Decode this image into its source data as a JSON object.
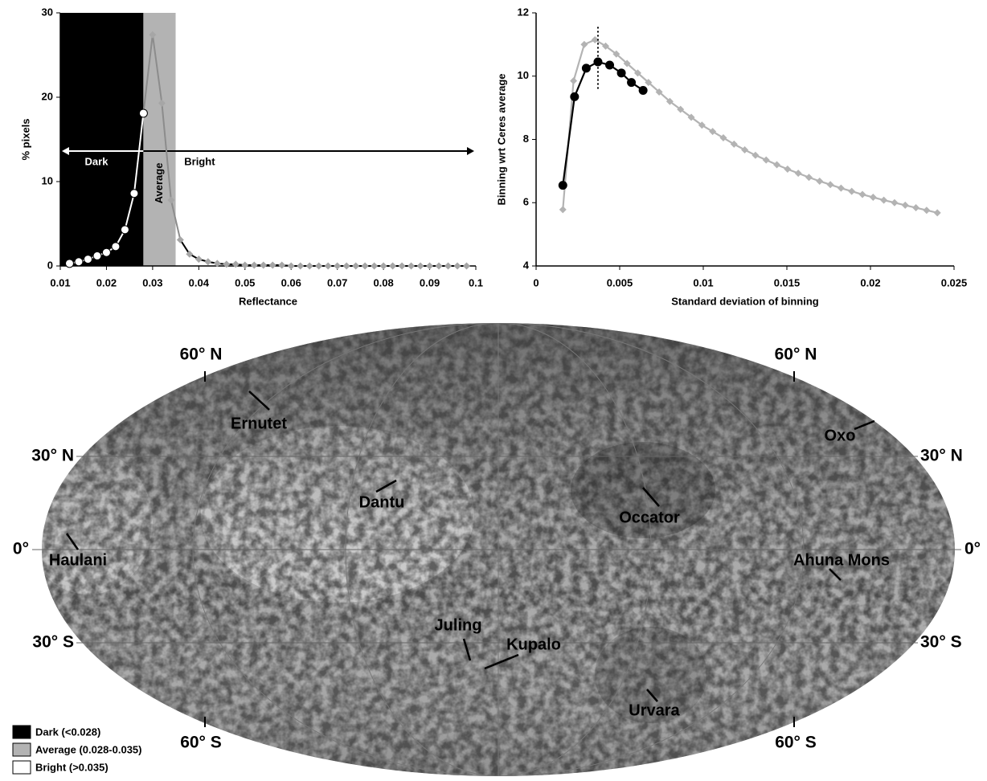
{
  "chart_data": [
    {
      "type": "line",
      "xlabel": "Reflectance",
      "ylabel": "% pixels",
      "xlim": [
        0.01,
        0.1
      ],
      "ylim": [
        0,
        30
      ],
      "xticks": [
        0.01,
        0.02,
        0.03,
        0.04,
        0.05,
        0.06,
        0.07,
        0.08,
        0.09,
        0.1
      ],
      "yticks": [
        0,
        10,
        20,
        30
      ],
      "regions": [
        {
          "name": "Dark (<0.028)",
          "color": "#000000",
          "range": [
            0.01,
            0.028
          ]
        },
        {
          "name": "Average (0.028-0.035)",
          "color": "#b3b3b3",
          "range": [
            0.028,
            0.035
          ]
        },
        {
          "name": "Bright (>0.035)",
          "color": "#ffffff",
          "range": [
            0.035,
            0.1
          ]
        }
      ],
      "annotations": [
        "Dark",
        "Average",
        "Bright"
      ],
      "x": [
        0.012,
        0.014,
        0.016,
        0.018,
        0.02,
        0.022,
        0.024,
        0.026,
        0.028,
        0.03,
        0.032,
        0.034,
        0.036,
        0.038,
        0.04,
        0.042,
        0.044,
        0.046,
        0.048,
        0.05,
        0.052,
        0.054,
        0.056,
        0.058,
        0.06,
        0.062,
        0.064,
        0.066,
        0.068,
        0.07,
        0.072,
        0.074,
        0.076,
        0.078,
        0.08,
        0.082,
        0.084,
        0.086,
        0.088,
        0.09,
        0.092,
        0.094,
        0.096,
        0.098
      ],
      "values": [
        0.3,
        0.5,
        0.8,
        1.2,
        1.6,
        2.3,
        4.3,
        8.6,
        18.1,
        27.4,
        19.3,
        7.8,
        3.1,
        1.4,
        0.8,
        0.5,
        0.3,
        0.2,
        0.2,
        0.1,
        0.1,
        0.1,
        0.1,
        0.1,
        0,
        0,
        0,
        0,
        0,
        0,
        0,
        0,
        0,
        0,
        0,
        0,
        0,
        0,
        0,
        0,
        0,
        0,
        0,
        0
      ]
    },
    {
      "type": "line",
      "xlabel": "Standard deviation of binning",
      "ylabel": "Binning wrt Ceres average",
      "xlim": [
        0,
        0.025
      ],
      "ylim": [
        4,
        12
      ],
      "xticks": [
        0,
        0.005,
        0.01,
        0.015,
        0.02,
        0.025
      ],
      "yticks": [
        4,
        6,
        8,
        10,
        12
      ],
      "series": [
        {
          "color": "#b3b3b3",
          "marker": "diamond",
          "x": [
            0.0016,
            0.00224,
            0.00288,
            0.00352,
            0.00416,
            0.0048,
            0.00544,
            0.00608,
            0.00672,
            0.00736,
            0.008,
            0.00864,
            0.00928,
            0.00992,
            0.01056,
            0.0112,
            0.01184,
            0.01248,
            0.01312,
            0.01376,
            0.0144,
            0.01504,
            0.01568,
            0.01632,
            0.01696,
            0.0176,
            0.01824,
            0.01888,
            0.01952,
            0.02016,
            0.0208,
            0.02144,
            0.02208,
            0.02272,
            0.02336,
            0.024
          ],
          "values": [
            5.78,
            9.85,
            11.0,
            11.15,
            10.95,
            10.7,
            10.4,
            10.1,
            9.8,
            9.5,
            9.2,
            8.95,
            8.7,
            8.45,
            8.25,
            8.05,
            7.85,
            7.67,
            7.5,
            7.35,
            7.2,
            7.06,
            6.93,
            6.8,
            6.68,
            6.57,
            6.46,
            6.36,
            6.26,
            6.17,
            6.08,
            6.0,
            5.92,
            5.84,
            5.76,
            5.68
          ]
        },
        {
          "color": "#000000",
          "marker": "circle",
          "x": [
            0.0016,
            0.0023,
            0.003,
            0.0037,
            0.0044,
            0.0051,
            0.0057,
            0.0064
          ],
          "values": [
            6.55,
            9.35,
            10.25,
            10.45,
            10.35,
            10.1,
            9.8,
            9.55
          ]
        }
      ],
      "vline": {
        "x": 0.0037,
        "y": [
          9.6,
          11.6
        ]
      }
    }
  ],
  "map": {
    "latitude_labels": [
      "60° N",
      "30° N",
      "0°",
      "30° S",
      "60° S"
    ],
    "features": [
      "Ernutet",
      "Oxo",
      "Dantu",
      "Occator",
      "Haulani",
      "Ahuna Mons",
      "Juling",
      "Kupalo",
      "Urvara"
    ]
  }
}
